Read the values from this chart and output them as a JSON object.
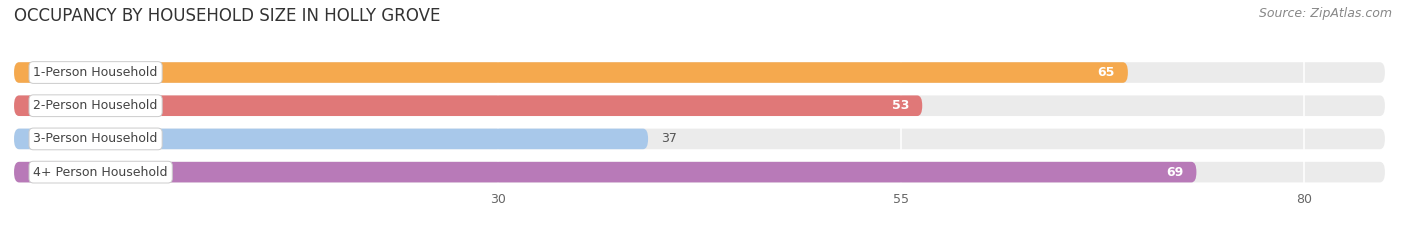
{
  "title": "OCCUPANCY BY HOUSEHOLD SIZE IN HOLLY GROVE",
  "source": "Source: ZipAtlas.com",
  "categories": [
    "1-Person Household",
    "2-Person Household",
    "3-Person Household",
    "4+ Person Household"
  ],
  "values": [
    65,
    53,
    37,
    69
  ],
  "bar_colors": [
    "#f5a94e",
    "#e07878",
    "#a8c8ea",
    "#b87ab8"
  ],
  "bar_bg_color": "#e8e8e8",
  "xlim": [
    0,
    85
  ],
  "xlim_display": 80,
  "xticks": [
    30,
    55,
    80
  ],
  "title_fontsize": 12,
  "source_fontsize": 9,
  "label_fontsize": 9,
  "value_fontsize": 9,
  "tick_fontsize": 9,
  "background_color": "#ffffff",
  "bar_background": "#ebebeb"
}
